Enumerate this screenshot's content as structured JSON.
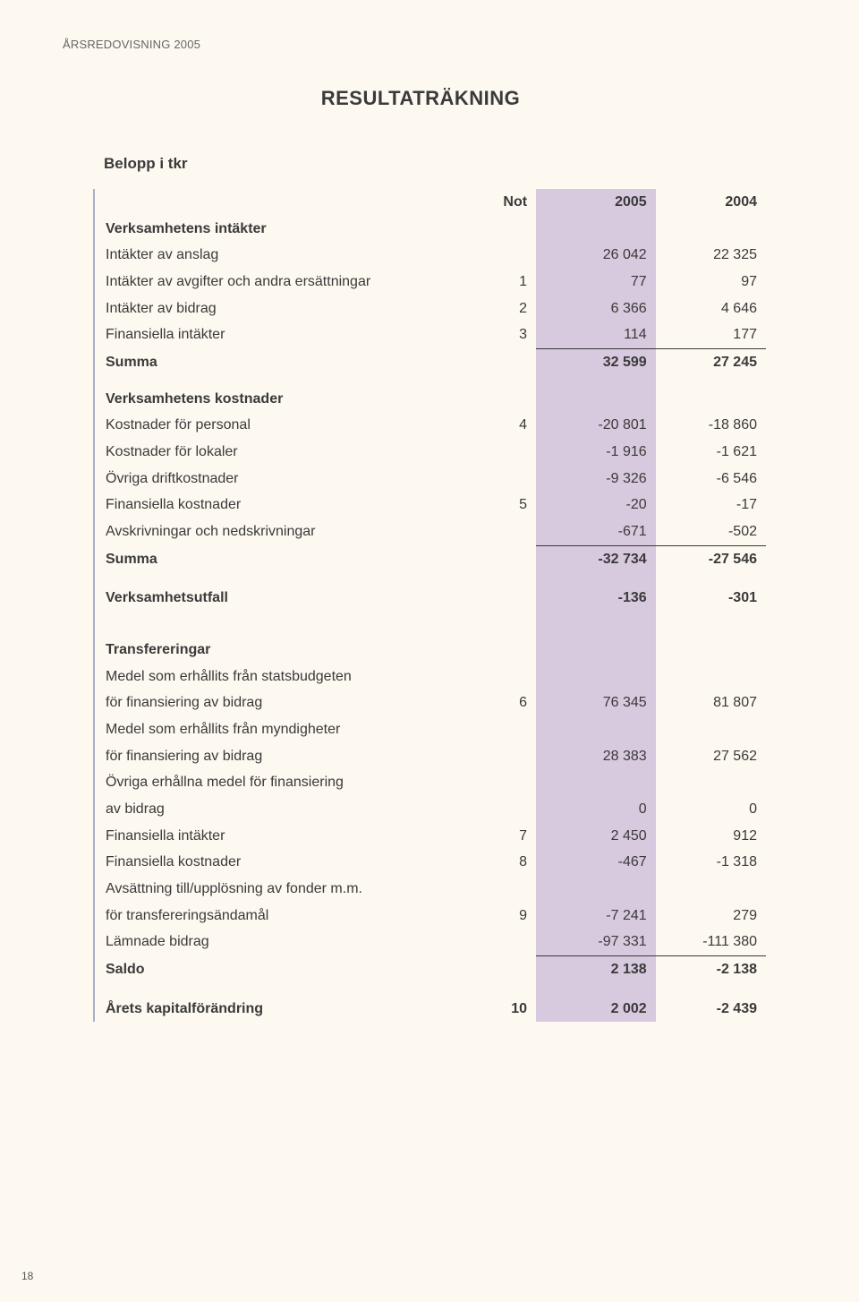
{
  "meta": {
    "running_head": "ÅRSREDOVISNING 2005",
    "section_title": "RESULTATRÄKNING",
    "subtitle": "Belopp i tkr",
    "page_number": "18"
  },
  "colors": {
    "background": "#fdf8f0",
    "text": "#3a3a3a",
    "shade": "#d7c9de",
    "rule_left": "#a7b0c9",
    "line": "#3a3a3a"
  },
  "columns": {
    "not": "Not",
    "y2005": "2005",
    "y2004": "2004"
  },
  "t": {
    "sec1": "Verksamhetens intäkter",
    "r1": {
      "label": "Intäkter av anslag",
      "not": "",
      "y2005": "26 042",
      "y2004": "22 325"
    },
    "r2": {
      "label": "Intäkter av avgifter och andra ersättningar",
      "not": "1",
      "y2005": "77",
      "y2004": "97"
    },
    "r3": {
      "label": "Intäkter av bidrag",
      "not": "2",
      "y2005": "6 366",
      "y2004": "4 646"
    },
    "r4": {
      "label": "Finansiella intäkter",
      "not": "3",
      "y2005": "114",
      "y2004": "177"
    },
    "sum1": {
      "label": "Summa",
      "y2005": "32 599",
      "y2004": "27 245"
    },
    "sec2": "Verksamhetens kostnader",
    "r5": {
      "label": "Kostnader för personal",
      "not": "4",
      "y2005": "-20 801",
      "y2004": "-18 860"
    },
    "r6": {
      "label": "Kostnader för lokaler",
      "not": "",
      "y2005": "-1 916",
      "y2004": "-1 621"
    },
    "r7": {
      "label": "Övriga driftkostnader",
      "not": "",
      "y2005": "-9 326",
      "y2004": "-6 546"
    },
    "r8": {
      "label": "Finansiella kostnader",
      "not": "5",
      "y2005": "-20",
      "y2004": "-17"
    },
    "r9": {
      "label": "Avskrivningar och nedskrivningar",
      "not": "",
      "y2005": "-671",
      "y2004": "-502"
    },
    "sum2": {
      "label": "Summa",
      "y2005": "-32 734",
      "y2004": "-27 546"
    },
    "vu": {
      "label": "Verksamhetsutfall",
      "y2005": "-136",
      "y2004": "-301"
    },
    "sec3": "Transfereringar",
    "r10a": {
      "label": "Medel som erhållits från statsbudgeten"
    },
    "r10b": {
      "label": "för finansiering av bidrag",
      "not": "6",
      "y2005": "76 345",
      "y2004": "81 807"
    },
    "r11a": {
      "label": "Medel som erhållits från myndigheter"
    },
    "r11b": {
      "label": "för finansiering av bidrag",
      "not": "",
      "y2005": "28 383",
      "y2004": "27 562"
    },
    "r12a": {
      "label": "Övriga erhållna medel för finansiering"
    },
    "r12b": {
      "label": "av bidrag",
      "not": "",
      "y2005": "0",
      "y2004": "0"
    },
    "r13": {
      "label": "Finansiella intäkter",
      "not": "7",
      "y2005": "2 450",
      "y2004": "912"
    },
    "r14": {
      "label": "Finansiella kostnader",
      "not": "8",
      "y2005": "-467",
      "y2004": "-1 318"
    },
    "r15a": {
      "label": "Avsättning till/upplösning av fonder m.m."
    },
    "r15b": {
      "label": "för transfereringsändamål",
      "not": "9",
      "y2005": "-7 241",
      "y2004": "279"
    },
    "r16": {
      "label": "Lämnade bidrag",
      "not": "",
      "y2005": "-97 331",
      "y2004": "-111 380"
    },
    "saldo": {
      "label": "Saldo",
      "y2005": "2 138",
      "y2004": "-2 138"
    },
    "kap": {
      "label": "Årets kapitalförändring",
      "not": "10",
      "y2005": "2 002",
      "y2004": "-2 439"
    }
  }
}
